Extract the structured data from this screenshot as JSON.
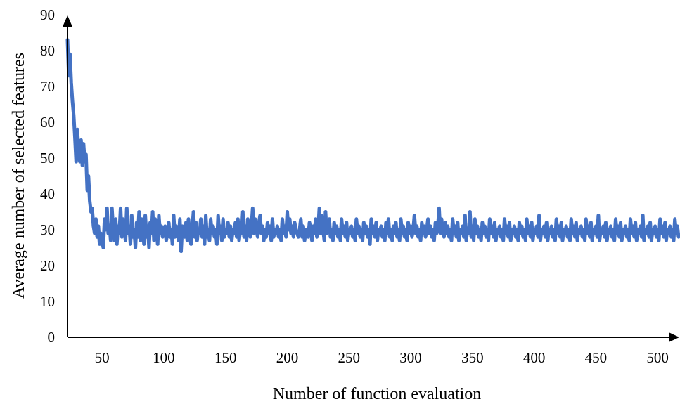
{
  "chart_data": {
    "type": "line",
    "title": "",
    "xlabel": "Number of function evaluation",
    "ylabel": "Average number of selected features",
    "xlim": [
      22,
      517
    ],
    "ylim": [
      0,
      90
    ],
    "xticks": [
      50,
      100,
      150,
      200,
      250,
      300,
      350,
      400,
      450,
      500
    ],
    "yticks": [
      0,
      10,
      20,
      30,
      40,
      50,
      60,
      70,
      80,
      90
    ],
    "grid": false,
    "legend": "none",
    "line_color": "#4472C4",
    "series": [
      {
        "x": [
          22,
          23,
          24,
          25,
          26,
          27,
          28,
          29,
          30,
          31,
          32,
          33,
          34,
          35,
          36,
          37,
          38,
          39,
          40,
          41,
          42,
          43,
          44,
          45,
          46,
          47,
          48,
          49,
          50,
          51,
          52,
          53,
          54,
          55,
          56,
          57,
          58,
          59,
          60,
          61,
          62,
          63,
          64,
          65,
          66,
          67,
          68,
          69,
          70,
          71,
          72,
          73,
          74,
          75,
          76,
          77,
          78,
          79,
          80,
          81,
          82,
          83,
          84,
          85,
          86,
          87,
          88,
          89,
          90,
          91,
          92,
          93,
          94,
          95,
          96,
          97,
          98,
          99,
          100,
          101,
          102,
          103,
          104,
          105,
          106,
          107,
          108,
          109,
          110,
          111,
          112,
          113,
          114,
          115,
          116,
          117,
          118,
          119,
          120,
          121,
          122,
          123,
          124,
          125,
          126,
          127,
          128,
          129,
          130,
          131,
          132,
          133,
          134,
          135,
          136,
          137,
          138,
          139,
          140,
          141,
          142,
          143,
          144,
          145,
          146,
          147,
          148,
          149,
          150,
          151,
          152,
          153,
          154,
          155,
          156,
          157,
          158,
          159,
          160,
          161,
          162,
          163,
          164,
          165,
          166,
          167,
          168,
          169,
          170,
          171,
          172,
          173,
          174,
          175,
          176,
          177,
          178,
          179,
          180,
          181,
          182,
          183,
          184,
          185,
          186,
          187,
          188,
          189,
          190,
          191,
          192,
          193,
          194,
          195,
          196,
          197,
          198,
          199,
          200,
          201,
          202,
          203,
          204,
          205,
          206,
          207,
          208,
          209,
          210,
          211,
          212,
          213,
          214,
          215,
          216,
          217,
          218,
          219,
          220,
          221,
          222,
          223,
          224,
          225,
          226,
          227,
          228,
          229,
          230,
          231,
          232,
          233,
          234,
          235,
          236,
          237,
          238,
          239,
          240,
          241,
          242,
          243,
          244,
          245,
          246,
          247,
          248,
          249,
          250,
          251,
          252,
          253,
          254,
          255,
          256,
          257,
          258,
          259,
          260,
          261,
          262,
          263,
          264,
          265,
          266,
          267,
          268,
          269,
          270,
          271,
          272,
          273,
          274,
          275,
          276,
          277,
          278,
          279,
          280,
          281,
          282,
          283,
          284,
          285,
          286,
          287,
          288,
          289,
          290,
          291,
          292,
          293,
          294,
          295,
          296,
          297,
          298,
          299,
          300,
          301,
          302,
          303,
          304,
          305,
          306,
          307,
          308,
          309,
          310,
          311,
          312,
          313,
          314,
          315,
          316,
          317,
          318,
          319,
          320,
          321,
          322,
          323,
          324,
          325,
          326,
          327,
          328,
          329,
          330,
          331,
          332,
          333,
          334,
          335,
          336,
          337,
          338,
          339,
          340,
          341,
          342,
          343,
          344,
          345,
          346,
          347,
          348,
          349,
          350,
          351,
          352,
          353,
          354,
          355,
          356,
          357,
          358,
          359,
          360,
          361,
          362,
          363,
          364,
          365,
          366,
          367,
          368,
          369,
          370,
          371,
          372,
          373,
          374,
          375,
          376,
          377,
          378,
          379,
          380,
          381,
          382,
          383,
          384,
          385,
          386,
          387,
          388,
          389,
          390,
          391,
          392,
          393,
          394,
          395,
          396,
          397,
          398,
          399,
          400,
          401,
          402,
          403,
          404,
          405,
          406,
          407,
          408,
          409,
          410,
          411,
          412,
          413,
          414,
          415,
          416,
          417,
          418,
          419,
          420,
          421,
          422,
          423,
          424,
          425,
          426,
          427,
          428,
          429,
          430,
          431,
          432,
          433,
          434,
          435,
          436,
          437,
          438,
          439,
          440,
          441,
          442,
          443,
          444,
          445,
          446,
          447,
          448,
          449,
          450,
          451,
          452,
          453,
          454,
          455,
          456,
          457,
          458,
          459,
          460,
          461,
          462,
          463,
          464,
          465,
          466,
          467,
          468,
          469,
          470,
          471,
          472,
          473,
          474,
          475,
          476,
          477,
          478,
          479,
          480,
          481,
          482,
          483,
          484,
          485,
          486,
          487,
          488,
          489,
          490,
          491,
          492,
          493,
          494,
          495,
          496,
          497,
          498,
          499,
          500,
          501,
          502,
          503,
          504,
          505,
          506,
          507,
          508,
          509,
          510,
          511,
          512,
          513,
          514,
          515,
          516,
          517
        ],
        "values": [
          83,
          73,
          79,
          71,
          66,
          62,
          56,
          49,
          58,
          52,
          49,
          55,
          48,
          54,
          49,
          51,
          41,
          45,
          38,
          35,
          36,
          31,
          29,
          33,
          28,
          31,
          26,
          29,
          27,
          25,
          33,
          30,
          36,
          29,
          31,
          27,
          36,
          30,
          27,
          33,
          26,
          31,
          29,
          36,
          28,
          33,
          30,
          27,
          36,
          29,
          31,
          26,
          34,
          28,
          30,
          25,
          32,
          28,
          35,
          27,
          33,
          29,
          26,
          34,
          28,
          31,
          25,
          32,
          29,
          35,
          27,
          33,
          30,
          26,
          34,
          29,
          31,
          28,
          30,
          31,
          27,
          29,
          32,
          28,
          30,
          26,
          34,
          28,
          31,
          29,
          27,
          33,
          24,
          31,
          29,
          28,
          32,
          27,
          33,
          29,
          26,
          30,
          35,
          28,
          32,
          27,
          30,
          29,
          33,
          28,
          31,
          26,
          34,
          28,
          30,
          27,
          33,
          29,
          31,
          28,
          30,
          26,
          34,
          29,
          31,
          27,
          33,
          28,
          30,
          29,
          32,
          28,
          31,
          27,
          30,
          29,
          32,
          28,
          33,
          27,
          30,
          29,
          35,
          28,
          31,
          27,
          33,
          30,
          28,
          31,
          36,
          29,
          33,
          30,
          28,
          32,
          34,
          29,
          31,
          27,
          30,
          28,
          32,
          29,
          31,
          27,
          33,
          28,
          30,
          29,
          31,
          28,
          30,
          27,
          33,
          29,
          31,
          28,
          35,
          30,
          33,
          29,
          31,
          28,
          32,
          30,
          29,
          28,
          30,
          33,
          28,
          31,
          27,
          30,
          29,
          28,
          32,
          30,
          27,
          31,
          29,
          33,
          28,
          30,
          36,
          29,
          34,
          30,
          27,
          35,
          29,
          31,
          33,
          28,
          30,
          27,
          32,
          29,
          31,
          28,
          30,
          27,
          33,
          29,
          31,
          28,
          32,
          27,
          30,
          29,
          31,
          28,
          30,
          27,
          33,
          29,
          31,
          28,
          30,
          27,
          32,
          29,
          31,
          28,
          30,
          26,
          33,
          29,
          31,
          28,
          32,
          27,
          30,
          29,
          31,
          28,
          30,
          27,
          32,
          29,
          33,
          28,
          30,
          27,
          31,
          29,
          32,
          28,
          30,
          27,
          33,
          29,
          31,
          28,
          30,
          27,
          32,
          29,
          31,
          28,
          30,
          34,
          29,
          31,
          28,
          30,
          27,
          32,
          29,
          31,
          28,
          30,
          33,
          29,
          31,
          28,
          30,
          27,
          32,
          29,
          31,
          36,
          29,
          33,
          30,
          28,
          32,
          29,
          31,
          28,
          30,
          27,
          33,
          29,
          31,
          28,
          32,
          27,
          30,
          29,
          31,
          28,
          34,
          27,
          30,
          29,
          35,
          28,
          31,
          27,
          33,
          29,
          31,
          28,
          30,
          27,
          32,
          29,
          31,
          28,
          30,
          27,
          33,
          29,
          31,
          28,
          32,
          27,
          30,
          29,
          31,
          28,
          30,
          27,
          33,
          29,
          31,
          28,
          32,
          27,
          30,
          29,
          31,
          28,
          30,
          27,
          32,
          29,
          31,
          28,
          30,
          27,
          33,
          29,
          31,
          28,
          32,
          27,
          30,
          29,
          31,
          28,
          34,
          27,
          30,
          29,
          31,
          28,
          32,
          27,
          30,
          29,
          31,
          28,
          30,
          27,
          33,
          29,
          31,
          28,
          32,
          27,
          30,
          29,
          31,
          28,
          30,
          27,
          33,
          29,
          31,
          28,
          32,
          27,
          30,
          29,
          31,
          28,
          30,
          27,
          33,
          29,
          31,
          28,
          32,
          27,
          30,
          29,
          31,
          28,
          34,
          27,
          30,
          29,
          31,
          28,
          32,
          27,
          30,
          29,
          31,
          28,
          30,
          27,
          33,
          29,
          31,
          28,
          32,
          27,
          30,
          29,
          31,
          28,
          30,
          27,
          33,
          29,
          31,
          28,
          32,
          27,
          30,
          29,
          31,
          28,
          34,
          27,
          30,
          29,
          31,
          28,
          32,
          27,
          30,
          29,
          31,
          28,
          30,
          27,
          33,
          29,
          31,
          28,
          32,
          27,
          30,
          29,
          31,
          28,
          30,
          27,
          33,
          29,
          31,
          28
        ]
      }
    ]
  }
}
